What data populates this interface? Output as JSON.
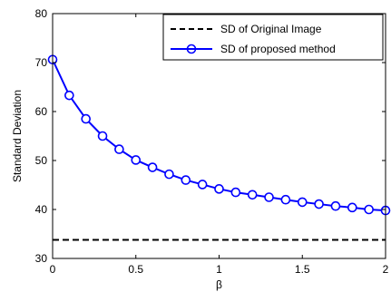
{
  "chart_data": {
    "type": "line",
    "xlabel": "β",
    "ylabel": "Standard Deviation",
    "xlim": [
      0,
      2
    ],
    "ylim": [
      30,
      80
    ],
    "xticks": [
      0,
      0.5,
      1,
      1.5,
      2
    ],
    "xtick_labels": [
      "0",
      "0.5",
      "1",
      "1.5",
      "2"
    ],
    "yticks": [
      30,
      40,
      50,
      60,
      70,
      80
    ],
    "ytick_labels": [
      "30",
      "40",
      "50",
      "60",
      "70",
      "80"
    ],
    "grid": false,
    "legend_position": "top-right",
    "series": [
      {
        "name": "SD of Original Image",
        "style": "dashed",
        "color": "#000000",
        "x": [
          0,
          2
        ],
        "y": [
          33.8,
          33.8
        ]
      },
      {
        "name": "SD of proposed method",
        "style": "solid-circle-markers",
        "color": "#0000ff",
        "x": [
          0,
          0.1,
          0.2,
          0.3,
          0.4,
          0.5,
          0.6,
          0.7,
          0.8,
          0.9,
          1.0,
          1.1,
          1.2,
          1.3,
          1.4,
          1.5,
          1.6,
          1.7,
          1.8,
          1.9,
          2.0
        ],
        "y": [
          70.6,
          63.3,
          58.5,
          55.0,
          52.3,
          50.1,
          48.6,
          47.2,
          46.0,
          45.1,
          44.2,
          43.5,
          43.0,
          42.5,
          42.0,
          41.5,
          41.1,
          40.7,
          40.4,
          40.0,
          39.8
        ]
      }
    ]
  }
}
